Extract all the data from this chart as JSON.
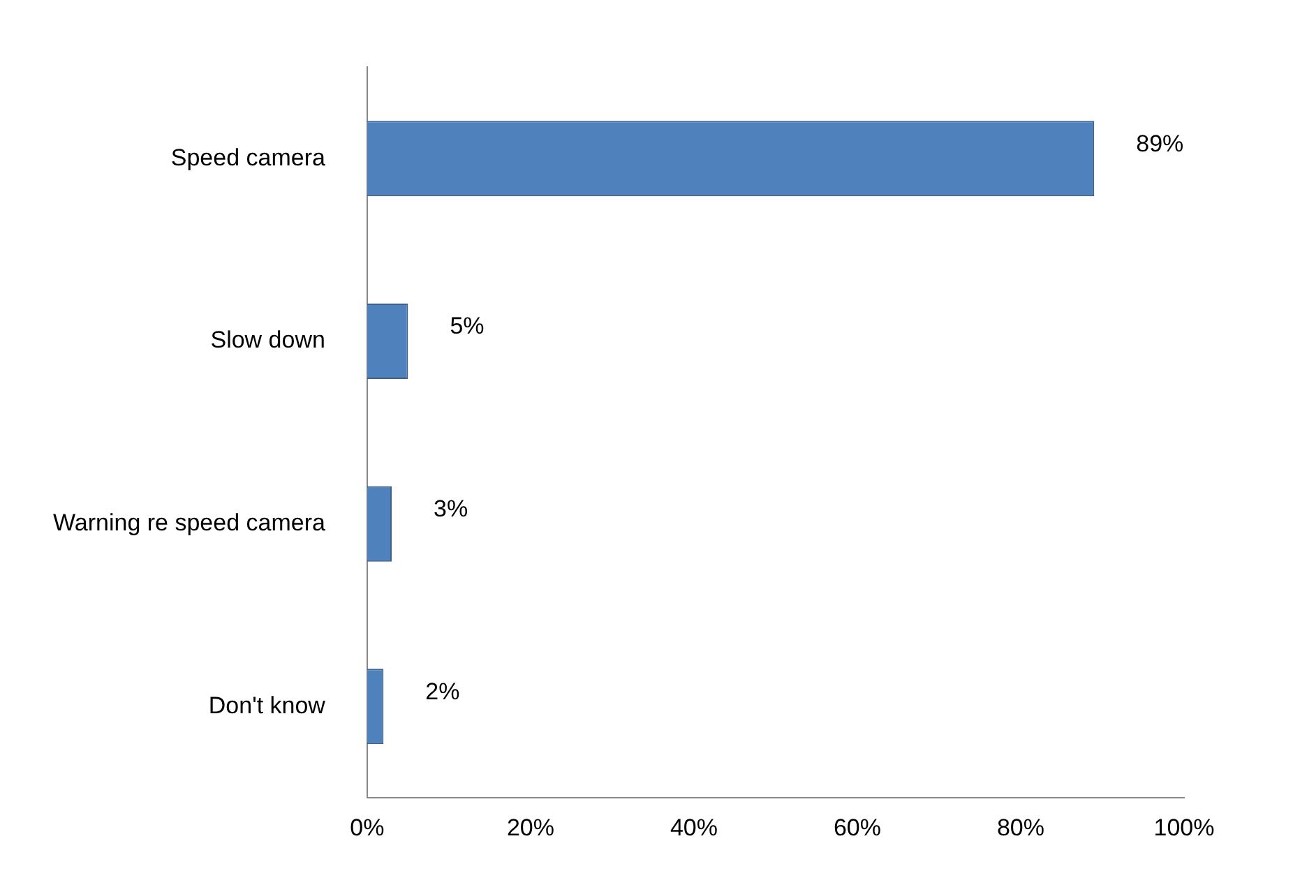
{
  "chart_data": {
    "type": "bar",
    "orientation": "horizontal",
    "categories": [
      "Speed camera",
      "Slow down",
      "Warning re speed camera",
      "Don't know"
    ],
    "values": [
      89,
      5,
      3,
      2
    ],
    "color": "#4f81bd",
    "value_labels": [
      "89%",
      "5%",
      "3%",
      "2%"
    ],
    "xlim": [
      0,
      100
    ],
    "xticks": [
      {
        "value": 0,
        "label": "0%"
      },
      {
        "value": 20,
        "label": "20%"
      },
      {
        "value": 40,
        "label": "40%"
      },
      {
        "value": 60,
        "label": "60%"
      },
      {
        "value": 80,
        "label": "80%"
      },
      {
        "value": 100,
        "label": "100%"
      }
    ],
    "grid": false,
    "legend": false
  }
}
